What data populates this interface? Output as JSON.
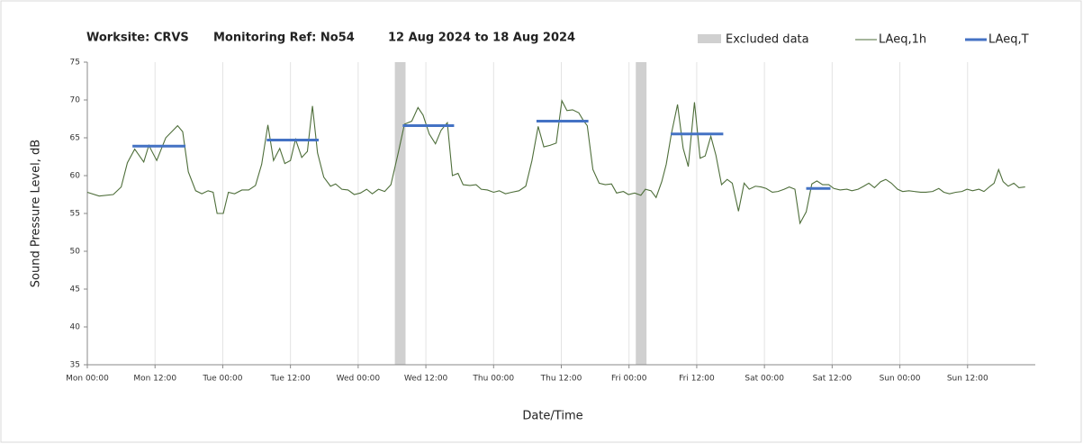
{
  "chart_data": {
    "type": "line",
    "title": "Worksite: CRVS",
    "subtitle": "Monitoring Ref: No54",
    "date_range": "12 Aug 2024 to 18 Aug 2024",
    "x_label": "Date/Time",
    "y_label": "Sound Pressure Level, dB",
    "xlim": [
      0,
      168
    ],
    "ylim": [
      35,
      75
    ],
    "yticks": [
      35,
      40,
      45,
      50,
      55,
      60,
      65,
      70,
      75
    ],
    "xticks": [
      {
        "value": 0,
        "label": "Mon 00:00"
      },
      {
        "value": 12,
        "label": "Mon 12:00"
      },
      {
        "value": 24,
        "label": "Tue 00:00"
      },
      {
        "value": 36,
        "label": "Tue 12:00"
      },
      {
        "value": 48,
        "label": "Wed 00:00"
      },
      {
        "value": 60,
        "label": "Wed 12:00"
      },
      {
        "value": 72,
        "label": "Thu 00:00"
      },
      {
        "value": 84,
        "label": "Thu 12:00"
      },
      {
        "value": 96,
        "label": "Fri 00:00"
      },
      {
        "value": 108,
        "label": "Fri 12:00"
      },
      {
        "value": 120,
        "label": "Sat 00:00"
      },
      {
        "value": 132,
        "label": "Sat 12:00"
      },
      {
        "value": 144,
        "label": "Sun 00:00"
      },
      {
        "value": 156,
        "label": "Sun 12:00"
      }
    ],
    "grid": "x",
    "excluded": {
      "name": "Excluded data",
      "color": "#d0d0d0",
      "ranges": [
        [
          54.5,
          56.4
        ],
        [
          97.2,
          99.1
        ]
      ]
    },
    "series": [
      {
        "name": "LAeq,1h",
        "color": "#4e6e3a",
        "x": [
          0,
          2.1,
          4.6,
          6,
          7.1,
          8.4,
          10,
          10.9,
          12.3,
          13.9,
          16,
          16.9,
          17.9,
          19.2,
          20.3,
          21.4,
          22.3,
          23,
          24.1,
          25,
          26.1,
          27.4,
          28.6,
          29.8,
          30.9,
          32,
          33,
          34.1,
          35,
          36,
          36.9,
          38,
          39,
          39.9,
          40.8,
          41.9,
          43.1,
          44,
          45.1,
          46.2,
          47.3,
          48.4,
          49.5,
          50.5,
          51.6,
          52.7,
          53.8,
          55.1,
          56.2,
          57.5,
          58.6,
          59.5,
          60.6,
          61.7,
          62.7,
          63.8,
          64.7,
          65.7,
          66.6,
          67.8,
          68.9,
          69.8,
          70.9,
          72,
          73,
          74.1,
          75.2,
          76.5,
          77.7,
          78.8,
          79.9,
          80.9,
          82,
          83.1,
          84.1,
          85,
          86,
          87.1,
          87.9,
          88.6,
          89.6,
          90.7,
          91.8,
          92.9,
          93.8,
          95,
          95.9,
          97,
          98.1,
          98.9,
          99.9,
          100.8,
          101.8,
          102.6,
          103.5,
          104.6,
          105.6,
          106.5,
          107.6,
          108.6,
          109.5,
          110.5,
          111.4,
          112.4,
          113.4,
          114.3,
          115.4,
          116.4,
          117.3,
          118.4,
          119.4,
          120.3,
          121.4,
          122.4,
          123.5,
          124.4,
          125.4,
          126.3,
          127.4,
          128.4,
          129.3,
          130.3,
          131.4,
          132.3,
          133.4,
          134.6,
          135.5,
          136.6,
          137.6,
          138.5,
          139.5,
          140.6,
          141.5,
          142.5,
          143.6,
          144.5,
          145.6,
          146.6,
          147.7,
          148.6,
          149.8,
          150.9,
          151.8,
          152.8,
          153.9,
          155,
          155.9,
          156.9,
          158,
          158.9,
          160,
          160.7,
          161.5,
          162.3,
          163.2,
          164.2,
          165.1,
          166.2
        ],
        "values": [
          57.8,
          57.3,
          57.5,
          58.5,
          61.7,
          63.5,
          61.8,
          64,
          62,
          65,
          66.6,
          65.8,
          60.5,
          58,
          57.6,
          58,
          57.8,
          55,
          55,
          57.8,
          57.6,
          58.1,
          58.1,
          58.7,
          61.5,
          66.7,
          62,
          63.6,
          61.6,
          62,
          64.8,
          62.4,
          63.2,
          69.2,
          63,
          59.8,
          58.6,
          58.9,
          58.2,
          58.1,
          57.5,
          57.7,
          58.2,
          57.6,
          58.2,
          57.9,
          58.8,
          63,
          66.8,
          67.2,
          69,
          68,
          65.5,
          64.2,
          66,
          67,
          60,
          60.3,
          58.8,
          58.7,
          58.8,
          58.2,
          58.1,
          57.8,
          58,
          57.6,
          57.8,
          58,
          58.6,
          62,
          66.5,
          63.8,
          64,
          64.3,
          69.9,
          68.6,
          68.7,
          68.3,
          67.3,
          66.6,
          60.8,
          59,
          58.8,
          58.9,
          57.7,
          57.9,
          57.5,
          57.7,
          57.4,
          58.2,
          58,
          57.1,
          59.2,
          61.5,
          65.5,
          69.4,
          63.6,
          61.2,
          69.7,
          62.3,
          62.6,
          65.2,
          62.7,
          58.8,
          59.5,
          59,
          55.3,
          59,
          58.2,
          58.6,
          58.5,
          58.3,
          57.8,
          57.9,
          58.2,
          58.5,
          58.2,
          53.7,
          55.2,
          58.9,
          59.3,
          58.8,
          58.8,
          58.3,
          58.1,
          58.2,
          58,
          58.2,
          58.6,
          59,
          58.4,
          59.2,
          59.5,
          59,
          58.2,
          57.9,
          58,
          57.9,
          57.8,
          57.8,
          57.9,
          58.3,
          57.8,
          57.6,
          57.8,
          57.9,
          58.2,
          58,
          58.2,
          57.9,
          58.6,
          59,
          60.8,
          59.2,
          58.6,
          59,
          58.4,
          58.5
        ]
      },
      {
        "name": "LAeq,T",
        "color": "#4472c4",
        "segments": [
          {
            "x": [
              8,
              17.4
            ],
            "value": 63.9
          },
          {
            "x": [
              31.8,
              41
            ],
            "value": 64.7
          },
          {
            "x": [
              55.9,
              65
            ],
            "value": 66.6
          },
          {
            "x": [
              79.6,
              88.8
            ],
            "value": 67.2
          },
          {
            "x": [
              103.4,
              112.7
            ],
            "value": 65.5
          },
          {
            "x": [
              127.4,
              131.7
            ],
            "value": 58.3
          }
        ]
      }
    ]
  }
}
